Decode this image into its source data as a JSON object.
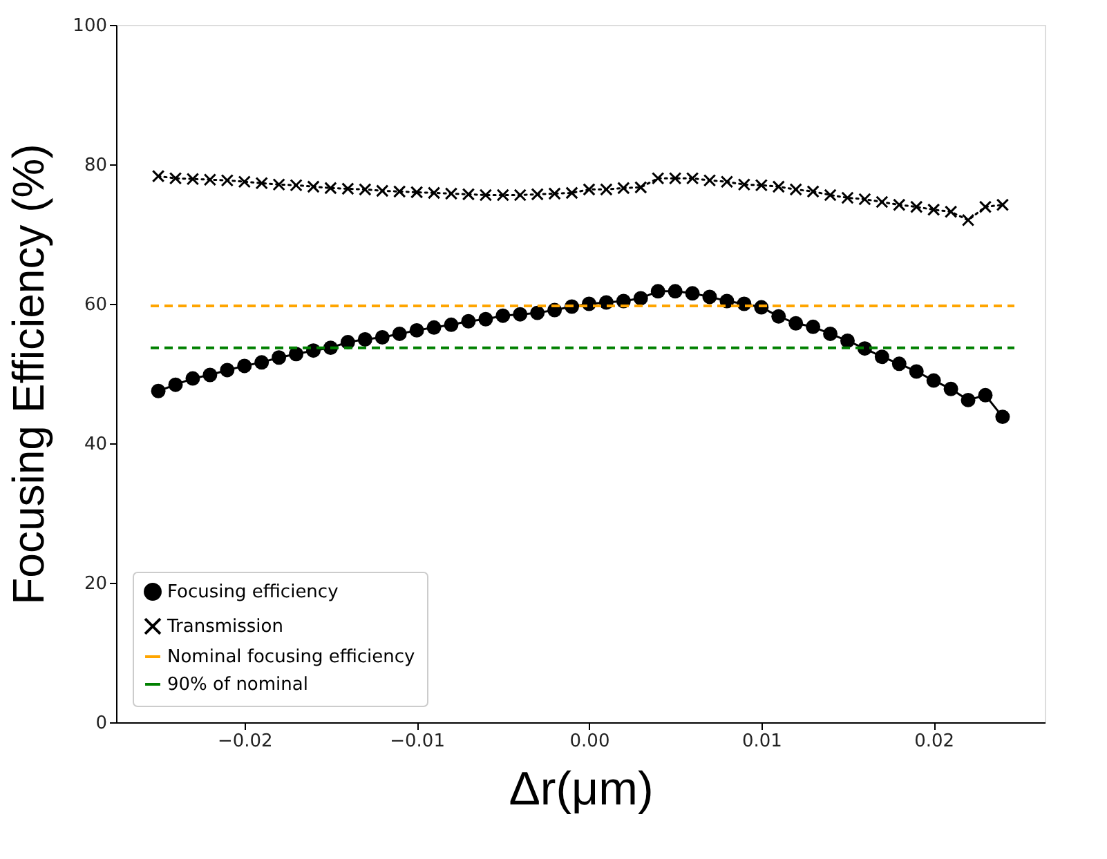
{
  "chart_data": {
    "type": "line",
    "xlabel": "Δr(μm)",
    "ylabel": "Focusing Efficiency (%)",
    "x": [
      -0.025,
      -0.024,
      -0.023,
      -0.022,
      -0.021,
      -0.02,
      -0.019,
      -0.018,
      -0.017,
      -0.016,
      -0.015,
      -0.014,
      -0.013,
      -0.012,
      -0.011,
      -0.01,
      -0.009,
      -0.008,
      -0.007,
      -0.006,
      -0.005,
      -0.004,
      -0.003,
      -0.002,
      -0.001,
      0.0,
      0.001,
      0.002,
      0.003,
      0.004,
      0.005,
      0.006,
      0.007,
      0.008,
      0.009,
      0.01,
      0.011,
      0.012,
      0.013,
      0.014,
      0.015,
      0.016,
      0.017,
      0.018,
      0.019,
      0.02,
      0.021,
      0.022,
      0.023,
      0.024
    ],
    "series": [
      {
        "name": "Focusing efficiency",
        "color": "#000000",
        "marker": "circle",
        "line_style": "solid",
        "values": [
          47.5,
          48.4,
          49.3,
          49.8,
          50.5,
          51.1,
          51.6,
          52.3,
          52.8,
          53.3,
          53.7,
          54.5,
          54.9,
          55.2,
          55.7,
          56.2,
          56.6,
          57.0,
          57.5,
          57.8,
          58.3,
          58.5,
          58.7,
          59.1,
          59.6,
          60.0,
          60.2,
          60.4,
          60.8,
          61.8,
          61.8,
          61.5,
          61.0,
          60.4,
          60.0,
          59.5,
          58.2,
          57.2,
          56.7,
          55.7,
          54.7,
          53.6,
          52.4,
          51.4,
          50.3,
          49.0,
          47.8,
          46.2,
          46.9,
          43.8
        ]
      },
      {
        "name": "Transmission",
        "color": "#000000",
        "marker": "cross",
        "line_style": "dotted",
        "values": [
          78.3,
          78.0,
          77.9,
          77.8,
          77.7,
          77.5,
          77.3,
          77.1,
          77.0,
          76.8,
          76.6,
          76.5,
          76.4,
          76.2,
          76.1,
          76.0,
          75.9,
          75.8,
          75.7,
          75.6,
          75.6,
          75.6,
          75.7,
          75.8,
          75.9,
          76.4,
          76.4,
          76.6,
          76.7,
          78.0,
          78.0,
          78.0,
          77.7,
          77.5,
          77.1,
          77.0,
          76.8,
          76.4,
          76.1,
          75.6,
          75.2,
          75.0,
          74.6,
          74.2,
          73.9,
          73.5,
          73.2,
          72.0,
          73.9,
          74.2
        ]
      }
    ],
    "ref_lines": [
      {
        "axis": "y",
        "value": 59.7,
        "label": "Nominal focusing efficiency",
        "color": "#ffa500",
        "line_style": "dashed"
      },
      {
        "axis": "y",
        "value": 53.7,
        "label": "90% of nominal",
        "color": "#008000",
        "line_style": "dashed"
      }
    ],
    "xlim": [
      -0.02745,
      0.02645
    ],
    "xticks": [
      {
        "value": -0.02,
        "label": "−0.02"
      },
      {
        "value": -0.01,
        "label": "−0.01"
      },
      {
        "value": 0.0,
        "label": "0.00"
      },
      {
        "value": 0.01,
        "label": "0.01"
      },
      {
        "value": 0.02,
        "label": "0.02"
      }
    ],
    "ylim": [
      0,
      100
    ],
    "yticks": [
      0,
      20,
      40,
      60,
      80,
      100
    ],
    "grid": false,
    "legend": "bottom left"
  }
}
